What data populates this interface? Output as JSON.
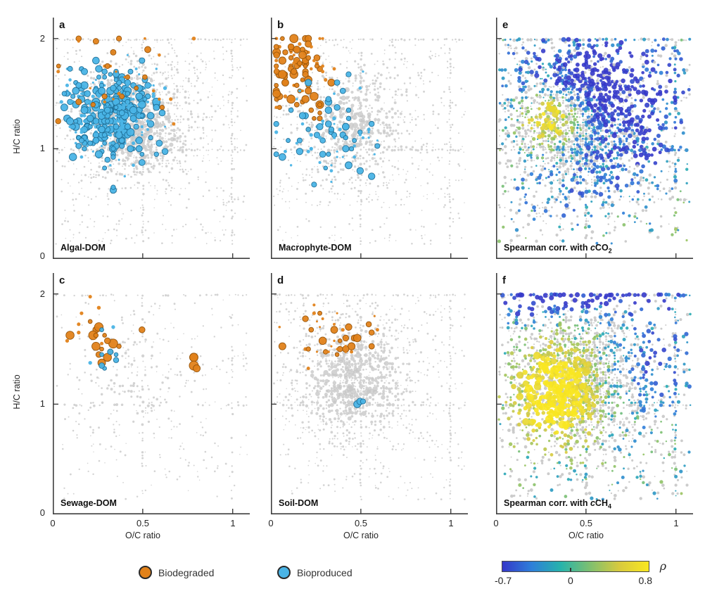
{
  "figure": {
    "background": "#ffffff",
    "axis": {
      "x_label": "O/C ratio",
      "y_label": "H/C ratio",
      "x_tick_labels": [
        "0",
        "0.5",
        "1"
      ],
      "y_tick_labels": [
        "0",
        "1",
        "2"
      ]
    },
    "legend": {
      "items": [
        {
          "label": "Biodegraded",
          "fill": "#e2821a",
          "edge": "#2a2a2a"
        },
        {
          "label": "Bioproduced",
          "fill": "#4ab4e6",
          "edge": "#2a2a2a"
        }
      ]
    },
    "colorbar": {
      "symbol": "ρ",
      "min_label": "-0.7",
      "mid_label": "0",
      "max_label": "0.8",
      "range": [
        -0.7,
        0.8
      ],
      "mid_value": 0
    }
  },
  "chart_data": {
    "type": "scatter",
    "description": "Six van Krevelen diagrams (H/C vs O/C of molecular formulas). Panels a-d highlight biodegraded (orange) and bioproduced (blue) formulas for four DOM sources over a gray background of all formulas; panels e-f color every formula by Spearman correlation (rho) with cCO2 and cCH4.",
    "x_axis": {
      "label": "O/C ratio",
      "range": [
        0,
        1.05
      ],
      "ticks": [
        0,
        0.5,
        1
      ]
    },
    "y_axis": {
      "label": "H/C ratio",
      "range": [
        0,
        2.15
      ],
      "ticks": [
        0,
        1,
        2
      ]
    },
    "colors": {
      "gray": "#c7c7c7",
      "orange": "#e2821a",
      "orange_edge": "#935208",
      "blue": "#4ab4e6",
      "blue_edge": "#1f6e96",
      "axis": "#3f3f3f",
      "colormap": [
        "#3538c9",
        "#2e7fd9",
        "#27b3ab",
        "#7fc06f",
        "#d8ca3e",
        "#f9e721"
      ]
    },
    "base_cloud": {
      "center": [
        0.45,
        1.25
      ],
      "spread": [
        0.2,
        0.33
      ],
      "step": [
        0.016,
        0.025
      ]
    },
    "fields": {
      "co2": {
        "noise": 0.34,
        "blobs": [
          {
            "c": [
              0.32,
              1.3
            ],
            "s": [
              0.115,
              0.17
            ],
            "a": 0.85
          },
          {
            "c": [
              0.55,
              1.7
            ],
            "s": [
              0.3,
              0.28
            ],
            "a": -0.8
          },
          {
            "c": [
              0.78,
              1.15
            ],
            "s": [
              0.22,
              0.38
            ],
            "a": -0.5
          },
          {
            "c": [
              0.35,
              0.6
            ],
            "s": [
              0.25,
              0.3
            ],
            "a": -0.25
          }
        ]
      },
      "ch4": {
        "noise": 0.32,
        "blobs": [
          {
            "c": [
              0.33,
              1.08
            ],
            "s": [
              0.15,
              0.3
            ],
            "a": 0.95
          },
          {
            "c": [
              0.5,
              1.97
            ],
            "s": [
              0.45,
              0.1
            ],
            "a": -0.75
          },
          {
            "c": [
              0.88,
              1.45
            ],
            "s": [
              0.16,
              0.38
            ],
            "a": -0.45
          },
          {
            "c": [
              0.15,
              1.9
            ],
            "s": [
              0.15,
              0.15
            ],
            "a": -0.3
          }
        ]
      }
    },
    "panels": [
      {
        "letter": "a",
        "title": {
          "text": "Algal-DOM"
        },
        "seed": 11,
        "base_density": 0.92,
        "core": 1.0,
        "clusters": [
          {
            "color": "blue",
            "count": 430,
            "center": [
              0.33,
              1.32
            ],
            "spread": [
              0.115,
              0.2
            ],
            "rmin": 1.5,
            "rmax": 5.5
          },
          {
            "color": "orange",
            "count": 34,
            "center": [
              0.38,
              1.65
            ],
            "spread": [
              0.2,
              0.28
            ],
            "rmin": 1.5,
            "rmax": 4.5
          }
        ]
      },
      {
        "letter": "b",
        "title": {
          "text": "Macrophyte-DOM"
        },
        "seed": 22,
        "base_density": 0.8,
        "core": 0.75,
        "clusters": [
          {
            "color": "orange",
            "count": 105,
            "center": [
              0.155,
              1.7
            ],
            "spread": [
              0.085,
              0.2
            ],
            "rmin": 2,
            "rmax": 6
          },
          {
            "color": "blue",
            "count": 85,
            "center": [
              0.33,
              1.12
            ],
            "spread": [
              0.15,
              0.22
            ],
            "rmin": 1.5,
            "rmax": 5
          }
        ]
      },
      {
        "letter": "c",
        "title": {
          "text": "Sewage-DOM"
        },
        "seed": 33,
        "base_density": 0.52,
        "core": 0.35,
        "clusters": [
          {
            "color": "orange",
            "count": 24,
            "center": [
              0.235,
              1.58
            ],
            "spread": [
              0.075,
              0.125
            ],
            "rmin": 2.5,
            "rmax": 6.5
          },
          {
            "color": "orange",
            "count": 4,
            "center": [
              0.79,
              1.38
            ],
            "spread": [
              0.045,
              0.05
            ],
            "rmin": 5,
            "rmax": 7
          },
          {
            "color": "blue",
            "count": 9,
            "center": [
              0.3,
              1.42
            ],
            "spread": [
              0.05,
              0.1
            ],
            "rmin": 2.5,
            "rmax": 4.5
          }
        ]
      },
      {
        "letter": "d",
        "title": {
          "text": "Soil-DOM"
        },
        "seed": 44,
        "base_density": 0.88,
        "core": 0.95,
        "clusters": [
          {
            "color": "orange",
            "count": 42,
            "center": [
              0.33,
              1.62
            ],
            "spread": [
              0.1,
              0.14
            ],
            "rmin": 1.5,
            "rmax": 5.5
          },
          {
            "color": "blue",
            "count": 3,
            "center": [
              0.52,
              1.0
            ],
            "spread": [
              0.035,
              0.05
            ],
            "rmin": 3.5,
            "rmax": 5.5
          }
        ]
      },
      {
        "letter": "e",
        "title": {
          "prefix": "Spearman corr. with ",
          "italic": "c",
          "formula": "CO",
          "sub": "2"
        },
        "seed": 55,
        "base_density": 1.0,
        "core": 1.0,
        "spread_mult": 1.25,
        "field": "co2"
      },
      {
        "letter": "f",
        "title": {
          "prefix": "Spearman corr. with ",
          "italic": "c",
          "formula": "CH",
          "sub": "4"
        },
        "seed": 66,
        "base_density": 1.0,
        "core": 1.0,
        "spread_mult": 1.25,
        "field": "ch4"
      }
    ]
  }
}
